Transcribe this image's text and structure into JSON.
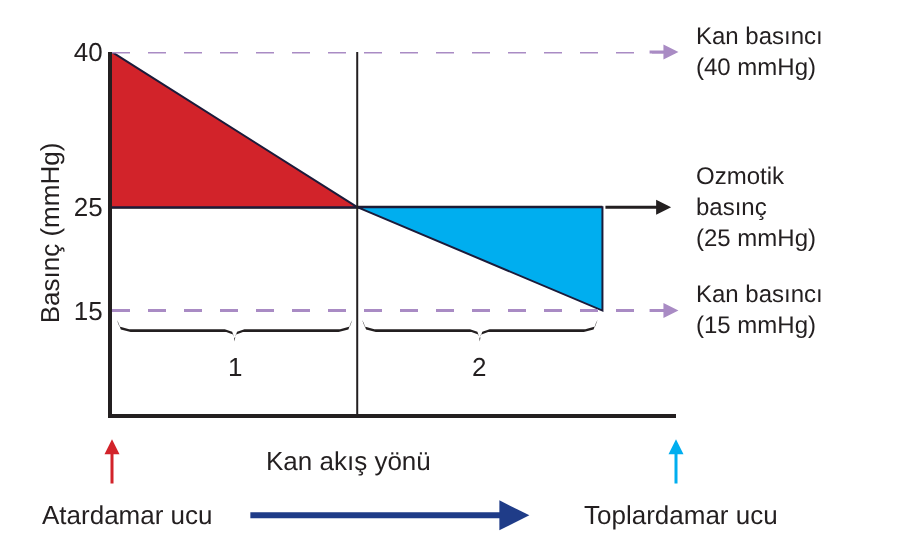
{
  "chart_data": {
    "type": "line",
    "ylabel": "Basınç (mmHg)",
    "categories": [
      null,
      null,
      null
    ],
    "ylim": [
      5,
      40
    ],
    "yticks": [
      15,
      25,
      40
    ],
    "tick_labels": "y",
    "series": [
      {
        "color": "#231f20",
        "values": [
          25,
          25,
          25
        ]
      },
      {
        "type": "area",
        "color": "#d2232a",
        "values": [
          40,
          25,
          null
        ]
      },
      {
        "type": "area",
        "color": "#00aeef",
        "values": [
          null,
          25,
          15
        ]
      }
    ],
    "ref_lines": [
      {
        "axis": "y",
        "value": 40,
        "label": "Kan basıncı\n(40 mmHg)",
        "color": "#a98bc4",
        "line_style": "dashed"
      },
      {
        "axis": "y",
        "value": 15,
        "label": "Kan basıncı\n(15 mmHg)",
        "color": "#a98bc4",
        "line_style": "dashed"
      }
    ],
    "annotations": [
      "Ozmotik\nbasınç\n(25 mmHg)",
      "1",
      "2",
      "Kan akış yönü",
      "Atardamar ucu",
      "Toplardamar ucu"
    ]
  }
}
